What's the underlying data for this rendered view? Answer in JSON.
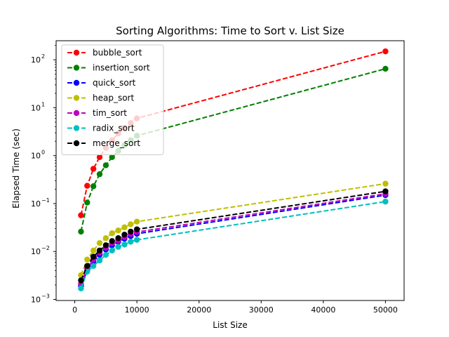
{
  "chart_data": {
    "type": "line",
    "title": "Sorting Algorithms: Time to Sort v. List Size",
    "xlabel": "List Size",
    "ylabel": "Elapsed Time (sec)",
    "xlim": [
      -3000,
      53000
    ],
    "ylim": [
      0.00095,
      250
    ],
    "yscale": "log",
    "x_ticks": [
      0,
      10000,
      20000,
      30000,
      40000,
      50000
    ],
    "x_tick_labels": [
      "0",
      "10000",
      "20000",
      "30000",
      "40000",
      "50000"
    ],
    "y_ticks": [
      0.001,
      0.01,
      0.1,
      1,
      10,
      100
    ],
    "y_tick_labels": [
      "10",
      "10",
      "10",
      "10",
      "10",
      "10"
    ],
    "y_tick_exponents": [
      "−3",
      "−2",
      "−1",
      "0",
      "1",
      "2"
    ],
    "grid": false,
    "legend_position": "top-left",
    "x": [
      1000,
      2000,
      3000,
      4000,
      5000,
      6000,
      7000,
      8000,
      9000,
      10000,
      50000
    ],
    "series": [
      {
        "name": "bubble_sort",
        "color": "#ff0000",
        "values": [
          0.057,
          0.235,
          0.53,
          0.93,
          1.45,
          2.1,
          2.9,
          3.8,
          4.8,
          6.0,
          150
        ]
      },
      {
        "name": "insertion_sort",
        "color": "#008000",
        "values": [
          0.026,
          0.105,
          0.23,
          0.41,
          0.63,
          0.93,
          1.25,
          1.65,
          2.1,
          2.6,
          65
        ]
      },
      {
        "name": "quick_sort",
        "color": "#0000ff",
        "values": [
          0.0019,
          0.004,
          0.0062,
          0.0085,
          0.011,
          0.0135,
          0.016,
          0.0185,
          0.021,
          0.0235,
          0.15
        ]
      },
      {
        "name": "heap_sort",
        "color": "#bfbf00",
        "values": [
          0.0032,
          0.0068,
          0.0105,
          0.015,
          0.019,
          0.024,
          0.0275,
          0.032,
          0.037,
          0.042,
          0.26
        ]
      },
      {
        "name": "tim_sort",
        "color": "#bf00bf",
        "values": [
          0.0021,
          0.0044,
          0.0068,
          0.0095,
          0.012,
          0.0148,
          0.017,
          0.02,
          0.023,
          0.0255,
          0.16
        ]
      },
      {
        "name": "radix_sort",
        "color": "#00bfbf",
        "values": [
          0.0017,
          0.0038,
          0.005,
          0.0065,
          0.0085,
          0.0105,
          0.0125,
          0.014,
          0.016,
          0.0175,
          0.11
        ]
      },
      {
        "name": "merge_sort",
        "color": "#000000",
        "values": [
          0.0025,
          0.005,
          0.0078,
          0.0105,
          0.0135,
          0.0165,
          0.019,
          0.0225,
          0.026,
          0.029,
          0.18
        ]
      }
    ]
  }
}
